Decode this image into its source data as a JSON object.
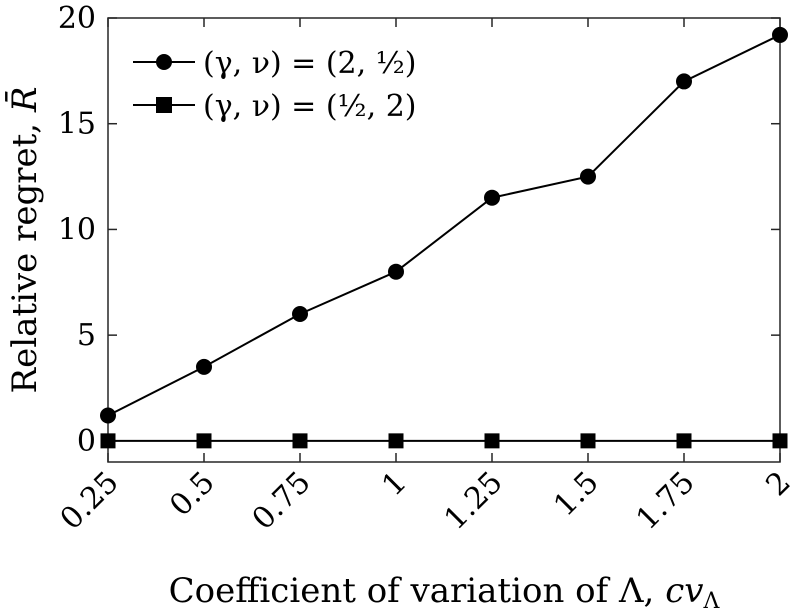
{
  "chart_data": {
    "type": "line",
    "title": "",
    "xlabel_parts": [
      "Coefficient of variation of Λ, ",
      "cv",
      "Λ"
    ],
    "ylabel_parts": [
      "Relative regret, ",
      "R̄"
    ],
    "categories": [
      "0.25",
      "0.5",
      "0.75",
      "1",
      "1.25",
      "1.5",
      "1.75",
      "2"
    ],
    "x": [
      0.25,
      0.5,
      0.75,
      1,
      1.25,
      1.5,
      1.75,
      2
    ],
    "xlim": [
      0.25,
      2
    ],
    "ylim": [
      -1,
      20
    ],
    "yticks": [
      0,
      5,
      10,
      15,
      20
    ],
    "grid": false,
    "legend_position": "top-left",
    "series": [
      {
        "name": "(γ, ν) = (2, ½)",
        "marker": "circle",
        "color": "#000000",
        "values": [
          1.2,
          3.5,
          6.0,
          8.0,
          11.5,
          12.5,
          17.0,
          19.2
        ]
      },
      {
        "name": "(γ, ν) = (½, 2)",
        "marker": "square",
        "color": "#000000",
        "values": [
          0,
          0,
          0,
          0,
          0,
          0,
          0,
          0
        ]
      }
    ]
  }
}
